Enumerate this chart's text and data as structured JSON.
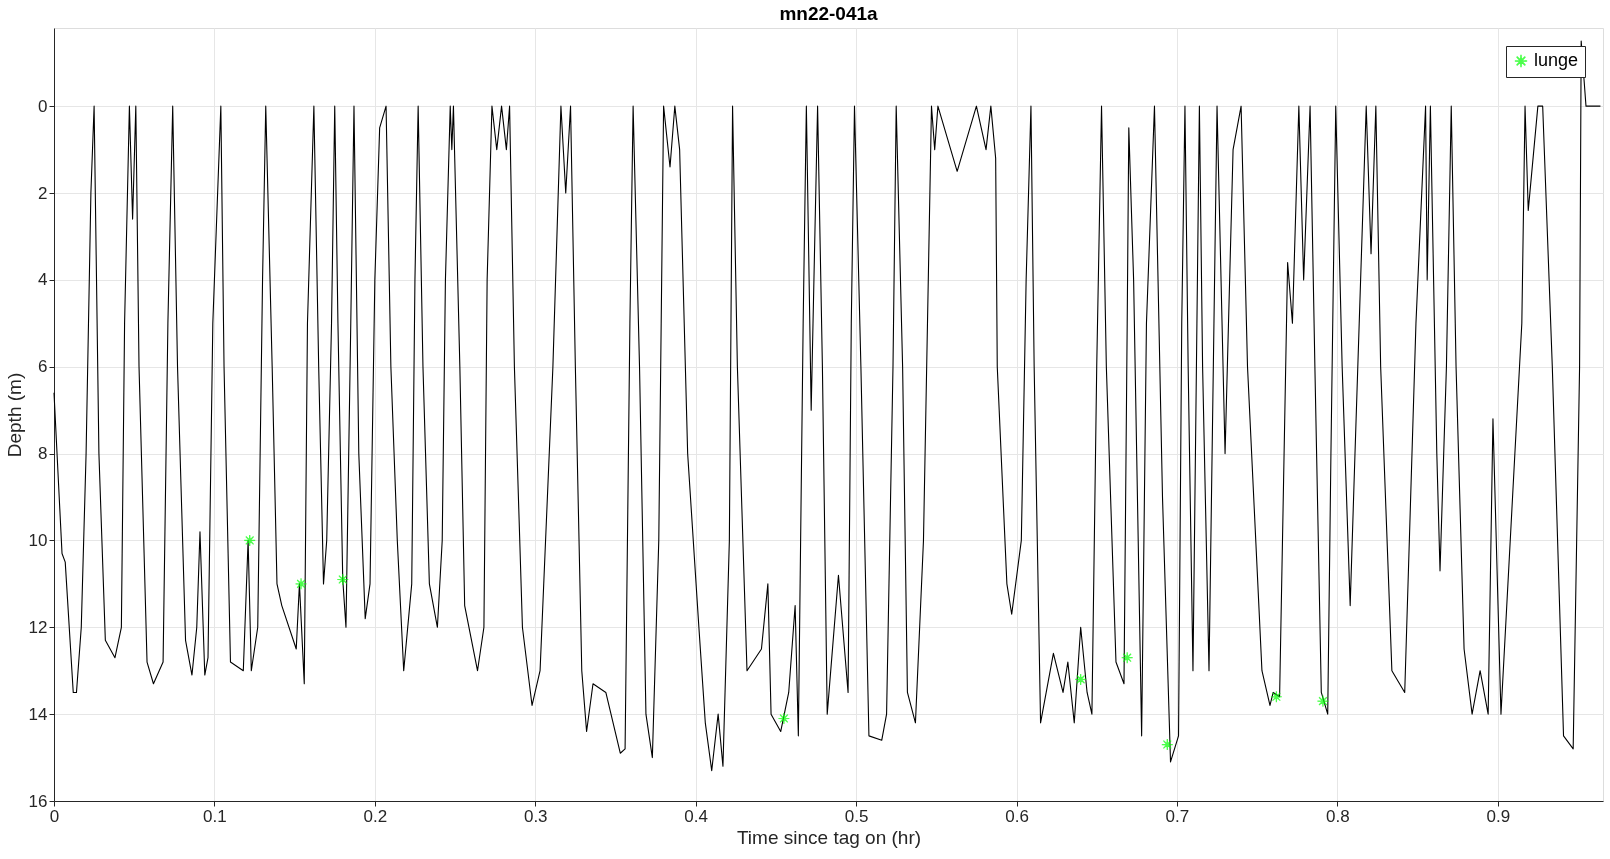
{
  "chart_data": {
    "type": "line",
    "title": "mn22-041a",
    "xlabel": "Time since tag on (hr)",
    "ylabel": "Depth (m)",
    "xlim": [
      0,
      0.9656
    ],
    "xticks": [
      0,
      0.1,
      0.2,
      0.3,
      0.4,
      0.5,
      0.6,
      0.7,
      0.8,
      0.9
    ],
    "ylim": [
      16,
      -1.8
    ],
    "yticks": [
      0,
      2,
      4,
      6,
      8,
      10,
      12,
      14,
      16
    ],
    "grid": true,
    "legend": "top right",
    "line_style": "solid",
    "series": [
      {
        "color": "#000000",
        "x": [
          0.0,
          0.005,
          0.007,
          0.012,
          0.014,
          0.017,
          0.02,
          0.023,
          0.025,
          0.028,
          0.032,
          0.038,
          0.042,
          0.044,
          0.047,
          0.049,
          0.051,
          0.053,
          0.058,
          0.062,
          0.068,
          0.071,
          0.074,
          0.077,
          0.082,
          0.086,
          0.089,
          0.091,
          0.094,
          0.096,
          0.099,
          0.104,
          0.106,
          0.11,
          0.118,
          0.121,
          0.123,
          0.127,
          0.13,
          0.132,
          0.136,
          0.139,
          0.142,
          0.151,
          0.153,
          0.156,
          0.158,
          0.162,
          0.165,
          0.168,
          0.17,
          0.173,
          0.175,
          0.177,
          0.18,
          0.182,
          0.185,
          0.187,
          0.19,
          0.194,
          0.197,
          0.2,
          0.203,
          0.207,
          0.21,
          0.214,
          0.218,
          0.223,
          0.225,
          0.227,
          0.23,
          0.234,
          0.239,
          0.242,
          0.244,
          0.247,
          0.248,
          0.249,
          0.253,
          0.256,
          0.264,
          0.268,
          0.27,
          0.273,
          0.276,
          0.279,
          0.282,
          0.284,
          0.287,
          0.292,
          0.298,
          0.303,
          0.311,
          0.316,
          0.319,
          0.322,
          0.325,
          0.329,
          0.332,
          0.336,
          0.344,
          0.353,
          0.356,
          0.359,
          0.361,
          0.365,
          0.369,
          0.373,
          0.377,
          0.38,
          0.384,
          0.387,
          0.39,
          0.395,
          0.402,
          0.406,
          0.41,
          0.414,
          0.417,
          0.421,
          0.423,
          0.426,
          0.432,
          0.441,
          0.445,
          0.447,
          0.453,
          0.458,
          0.462,
          0.464,
          0.467,
          0.469,
          0.472,
          0.476,
          0.479,
          0.482,
          0.489,
          0.495,
          0.497,
          0.499,
          0.503,
          0.508,
          0.516,
          0.519,
          0.523,
          0.525,
          0.529,
          0.532,
          0.537,
          0.542,
          0.547,
          0.549,
          0.551,
          0.563,
          0.575,
          0.581,
          0.584,
          0.587,
          0.588,
          0.594,
          0.597,
          0.603,
          0.606,
          0.609,
          0.611,
          0.615,
          0.623,
          0.629,
          0.632,
          0.636,
          0.64,
          0.644,
          0.647,
          0.65,
          0.653,
          0.656,
          0.662,
          0.667,
          0.669,
          0.67,
          0.673,
          0.678,
          0.681,
          0.686,
          0.691,
          0.696,
          0.701,
          0.703,
          0.705,
          0.707,
          0.71,
          0.714,
          0.716,
          0.72,
          0.725,
          0.73,
          0.735,
          0.74,
          0.744,
          0.753,
          0.758,
          0.76,
          0.764,
          0.769,
          0.772,
          0.776,
          0.779,
          0.783,
          0.786,
          0.79,
          0.794,
          0.796,
          0.799,
          0.803,
          0.808,
          0.811,
          0.818,
          0.821,
          0.824,
          0.827,
          0.834,
          0.842,
          0.849,
          0.855,
          0.856,
          0.858,
          0.862,
          0.864,
          0.868,
          0.871,
          0.874,
          0.879,
          0.884,
          0.889,
          0.894,
          0.897,
          0.902,
          0.915,
          0.917,
          0.919,
          0.925,
          0.928,
          0.934,
          0.941,
          0.947,
          0.951,
          0.952,
          0.955,
          0.964
        ],
        "values": [
          6.6,
          10.3,
          10.5,
          13.5,
          13.5,
          12,
          8,
          2,
          0,
          8,
          12.3,
          12.7,
          12,
          5,
          0,
          2.6,
          0,
          6,
          12.8,
          13.3,
          12.8,
          5,
          0,
          6,
          12.3,
          13.1,
          12,
          9.8,
          13.1,
          12.7,
          5,
          0,
          6,
          12.8,
          13,
          10,
          13,
          12,
          4,
          0,
          6,
          11,
          11.5,
          12.5,
          11,
          13.3,
          5,
          0,
          6,
          11,
          10,
          5,
          0,
          5,
          10.9,
          12,
          5,
          0,
          8,
          11.8,
          11,
          4,
          0.5,
          0,
          6,
          10,
          13,
          11,
          4,
          0,
          6,
          11,
          12,
          10,
          4,
          0,
          1,
          0,
          6,
          11.5,
          13,
          12,
          4,
          0,
          1,
          0,
          1,
          0,
          6,
          12,
          13.8,
          13,
          6,
          0,
          2,
          0,
          6,
          13,
          14.4,
          13.3,
          13.5,
          14.9,
          14.8,
          5,
          0,
          6,
          14,
          15,
          10,
          0,
          1.4,
          0,
          1,
          8,
          12,
          14.2,
          15.3,
          14,
          15.2,
          10,
          0,
          6,
          13,
          12.5,
          11,
          14,
          14.4,
          13.5,
          11.5,
          14.5,
          5,
          0,
          7,
          0,
          6,
          14,
          10.8,
          13.5,
          5,
          0,
          6,
          14.5,
          14.6,
          14,
          6,
          0,
          6,
          13.5,
          14.2,
          10,
          0,
          1,
          0,
          1.5,
          0,
          1,
          0,
          1.2,
          6,
          11,
          11.7,
          10,
          4,
          0,
          6,
          14.2,
          12.6,
          13.5,
          12.8,
          14.2,
          12,
          13.5,
          14,
          6,
          0,
          6,
          12.8,
          13.3,
          5,
          0.5,
          4,
          14.5,
          5,
          0,
          9,
          15.1,
          14.5,
          5,
          0,
          6,
          13,
          0,
          6,
          13,
          0,
          8,
          1,
          0,
          6,
          13,
          13.8,
          13.5,
          13.6,
          3.6,
          5,
          0,
          4,
          0,
          6,
          13.5,
          14,
          8,
          0,
          6,
          11.5,
          8,
          0,
          3.4,
          0,
          6,
          13,
          13.5,
          5,
          0,
          4,
          0,
          8,
          10.7,
          6,
          0,
          6,
          12.5,
          14,
          13,
          14,
          7.2,
          14,
          5,
          0,
          2.4,
          0,
          0,
          6,
          14.5,
          14.8,
          6,
          -1.5,
          0,
          0
        ]
      },
      {
        "type": "scatter",
        "name": "lunge",
        "color": "#00ff00",
        "marker": "star",
        "x": [
          0.122,
          0.154,
          0.18,
          0.455,
          0.64,
          0.669,
          0.694,
          0.762,
          0.791
        ],
        "values": [
          10.0,
          11.0,
          10.9,
          14.1,
          13.2,
          12.7,
          14.7,
          13.6,
          13.7
        ]
      }
    ]
  }
}
